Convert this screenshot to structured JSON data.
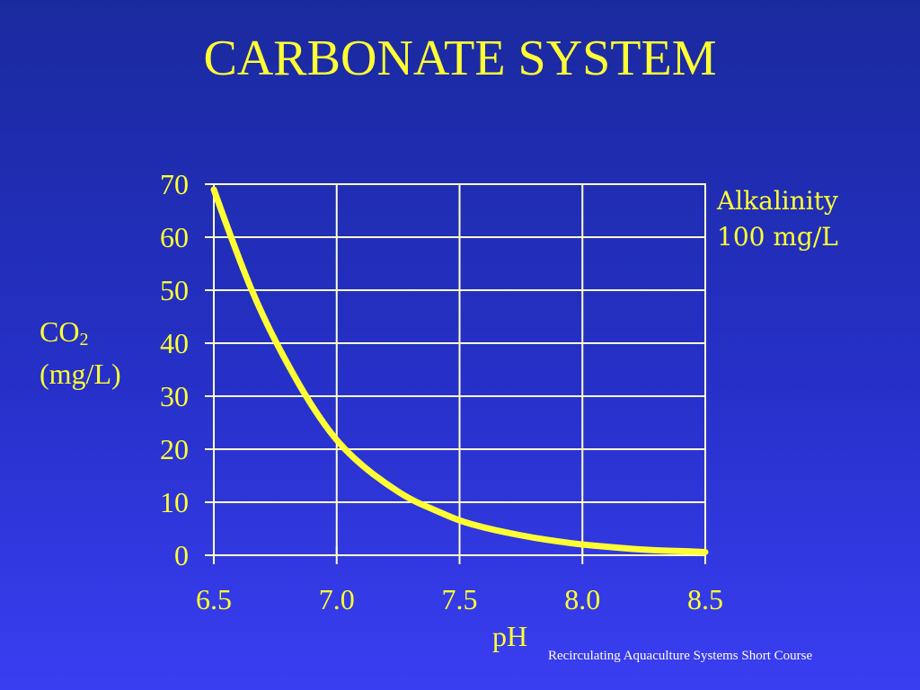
{
  "title": "CARBONATE SYSTEM",
  "footer": "Recirculating Aquaculture Systems Short Course",
  "chart_data": {
    "type": "line",
    "title": "CARBONATE SYSTEM",
    "xlabel": "pH",
    "ylabel_main": "CO",
    "ylabel_sub": "2",
    "ylabel_unit": "(mg/L)",
    "xlim": [
      6.5,
      8.5
    ],
    "ylim": [
      0,
      70
    ],
    "xticks": [
      6.5,
      7.0,
      7.5,
      8.0,
      8.5
    ],
    "xtick_labels": [
      "6.5",
      "7.0",
      "7.5",
      "8.0",
      "8.5"
    ],
    "yticks": [
      0,
      10,
      20,
      30,
      40,
      50,
      60,
      70
    ],
    "ytick_labels": [
      "0",
      "10",
      "20",
      "30",
      "40",
      "50",
      "60",
      "70"
    ],
    "grid": true,
    "annotation": [
      "Alkalinity",
      "100 mg/L"
    ],
    "colors": {
      "line": "#ffff33",
      "grid": "#ffffcc",
      "background": "#2630c8"
    },
    "series": [
      {
        "x": [
          6.5,
          6.6,
          6.7,
          6.8,
          6.9,
          7.0,
          7.1,
          7.2,
          7.3,
          7.4,
          7.5,
          7.6,
          7.7,
          7.8,
          7.9,
          8.0,
          8.1,
          8.2,
          8.3,
          8.4,
          8.5
        ],
        "values": [
          69,
          56,
          45,
          36,
          28,
          21.5,
          17,
          13.5,
          10.5,
          8.5,
          6.5,
          5.2,
          4.2,
          3.3,
          2.6,
          2.0,
          1.6,
          1.2,
          0.9,
          0.8,
          0.6
        ]
      }
    ]
  }
}
